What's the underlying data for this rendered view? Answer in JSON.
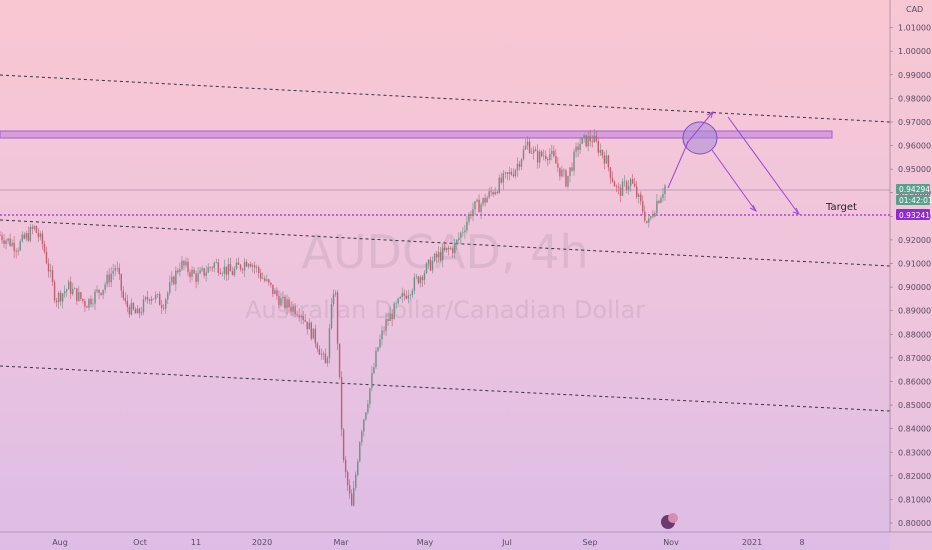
{
  "chart_data": {
    "type": "candlestick",
    "symbol": "AUDCAD, 4h",
    "description": "Australian Dollar/Canadian Dollar",
    "currency": "CAD",
    "y_ticks": [
      "1.01000",
      "1.00000",
      "0.99000",
      "0.98000",
      "0.97000",
      "0.96000",
      "0.95000",
      "0.94000",
      "0.93000",
      "0.92000",
      "0.91000",
      "0.90000",
      "0.89000",
      "0.88000",
      "0.87000",
      "0.86000",
      "0.85000",
      "0.84000",
      "0.83000",
      "0.82000",
      "0.81000",
      "0.80000"
    ],
    "ylim": [
      0.7962,
      1.0217
    ],
    "x_ticks": [
      "Aug",
      "Oct",
      "11",
      "2020",
      "Mar",
      "May",
      "Jul",
      "Sep",
      "Nov",
      "2021",
      "8"
    ],
    "price_labels": {
      "last": "0.94294",
      "countdown": "01:42:01",
      "target": "0.93241"
    },
    "annotation_target": "Target",
    "trend": [
      [
        0,
        0.922
      ],
      [
        0.02,
        0.917
      ],
      [
        0.04,
        0.925
      ],
      [
        0.05,
        0.918
      ],
      [
        0.065,
        0.895
      ],
      [
        0.08,
        0.9
      ],
      [
        0.1,
        0.893
      ],
      [
        0.12,
        0.9
      ],
      [
        0.135,
        0.909
      ],
      [
        0.145,
        0.893
      ],
      [
        0.16,
        0.888
      ],
      [
        0.175,
        0.897
      ],
      [
        0.19,
        0.893
      ],
      [
        0.21,
        0.91
      ],
      [
        0.23,
        0.904
      ],
      [
        0.25,
        0.91
      ],
      [
        0.27,
        0.906
      ],
      [
        0.29,
        0.912
      ],
      [
        0.31,
        0.902
      ],
      [
        0.33,
        0.893
      ],
      [
        0.35,
        0.89
      ],
      [
        0.37,
        0.876
      ],
      [
        0.38,
        0.866
      ],
      [
        0.39,
        0.904
      ],
      [
        0.4,
        0.826
      ],
      [
        0.41,
        0.806
      ],
      [
        0.42,
        0.838
      ],
      [
        0.43,
        0.855
      ],
      [
        0.44,
        0.874
      ],
      [
        0.45,
        0.885
      ],
      [
        0.47,
        0.896
      ],
      [
        0.49,
        0.905
      ],
      [
        0.51,
        0.913
      ],
      [
        0.53,
        0.917
      ],
      [
        0.55,
        0.933
      ],
      [
        0.56,
        0.935
      ],
      [
        0.58,
        0.943
      ],
      [
        0.6,
        0.95
      ],
      [
        0.615,
        0.961
      ],
      [
        0.625,
        0.955
      ],
      [
        0.64,
        0.957
      ],
      [
        0.66,
        0.945
      ],
      [
        0.675,
        0.961
      ],
      [
        0.69,
        0.963
      ],
      [
        0.705,
        0.955
      ],
      [
        0.72,
        0.94
      ],
      [
        0.735,
        0.945
      ],
      [
        0.75,
        0.932
      ],
      [
        0.755,
        0.926
      ],
      [
        0.765,
        0.936
      ],
      [
        0.775,
        0.943
      ]
    ]
  }
}
